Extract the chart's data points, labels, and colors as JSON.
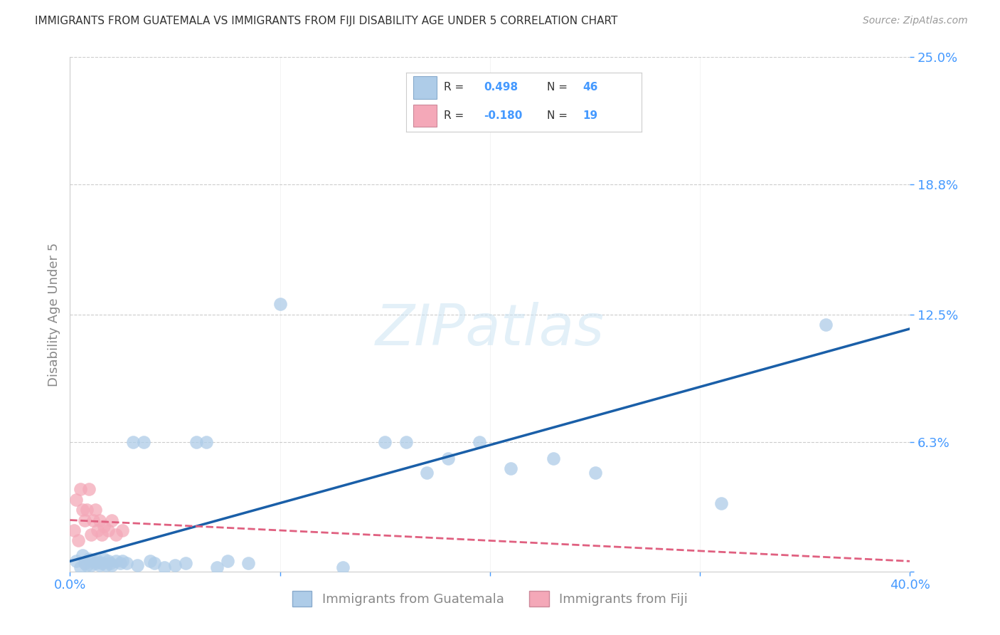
{
  "title": "IMMIGRANTS FROM GUATEMALA VS IMMIGRANTS FROM FIJI DISABILITY AGE UNDER 5 CORRELATION CHART",
  "source": "Source: ZipAtlas.com",
  "ylabel": "Disability Age Under 5",
  "xlim": [
    0.0,
    0.4
  ],
  "ylim": [
    0.0,
    0.25
  ],
  "xticks": [
    0.0,
    0.1,
    0.2,
    0.3,
    0.4
  ],
  "xticklabels": [
    "0.0%",
    "",
    "",
    "",
    "40.0%"
  ],
  "ytick_positions": [
    0.0,
    0.063,
    0.125,
    0.188,
    0.25
  ],
  "ytick_labels": [
    "",
    "6.3%",
    "12.5%",
    "18.8%",
    "25.0%"
  ],
  "legend_r_guatemala": "0.498",
  "legend_n_guatemala": "46",
  "legend_r_fiji": "-0.180",
  "legend_n_fiji": "19",
  "color_guatemala": "#aecce8",
  "color_fiji": "#f4a8b8",
  "line_color_guatemala": "#1a5fa8",
  "line_color_fiji": "#e06080",
  "watermark_text": "ZIPatlas",
  "guatemala_x": [
    0.003,
    0.005,
    0.006,
    0.007,
    0.008,
    0.009,
    0.01,
    0.011,
    0.012,
    0.013,
    0.014,
    0.015,
    0.016,
    0.017,
    0.018,
    0.019,
    0.02,
    0.022,
    0.024,
    0.025,
    0.027,
    0.03,
    0.032,
    0.035,
    0.038,
    0.04,
    0.045,
    0.05,
    0.055,
    0.06,
    0.065,
    0.07,
    0.075,
    0.085,
    0.1,
    0.13,
    0.15,
    0.16,
    0.17,
    0.18,
    0.195,
    0.21,
    0.23,
    0.25,
    0.31,
    0.36
  ],
  "guatemala_y": [
    0.005,
    0.002,
    0.008,
    0.004,
    0.003,
    0.006,
    0.003,
    0.005,
    0.004,
    0.005,
    0.003,
    0.004,
    0.006,
    0.003,
    0.005,
    0.004,
    0.003,
    0.005,
    0.004,
    0.005,
    0.004,
    0.063,
    0.003,
    0.063,
    0.005,
    0.004,
    0.002,
    0.003,
    0.004,
    0.063,
    0.063,
    0.002,
    0.005,
    0.004,
    0.13,
    0.002,
    0.063,
    0.063,
    0.048,
    0.055,
    0.063,
    0.05,
    0.055,
    0.048,
    0.033,
    0.12
  ],
  "fiji_x": [
    0.002,
    0.003,
    0.004,
    0.005,
    0.006,
    0.007,
    0.008,
    0.009,
    0.01,
    0.011,
    0.012,
    0.013,
    0.014,
    0.015,
    0.016,
    0.018,
    0.02,
    0.022,
    0.025
  ],
  "fiji_y": [
    0.02,
    0.035,
    0.015,
    0.04,
    0.03,
    0.025,
    0.03,
    0.04,
    0.018,
    0.025,
    0.03,
    0.02,
    0.025,
    0.018,
    0.022,
    0.02,
    0.025,
    0.018,
    0.02
  ],
  "guat_line_x": [
    0.0,
    0.4
  ],
  "guat_line_y": [
    0.005,
    0.118
  ],
  "fiji_line_x": [
    0.0,
    0.4
  ],
  "fiji_line_y": [
    0.025,
    0.005
  ]
}
